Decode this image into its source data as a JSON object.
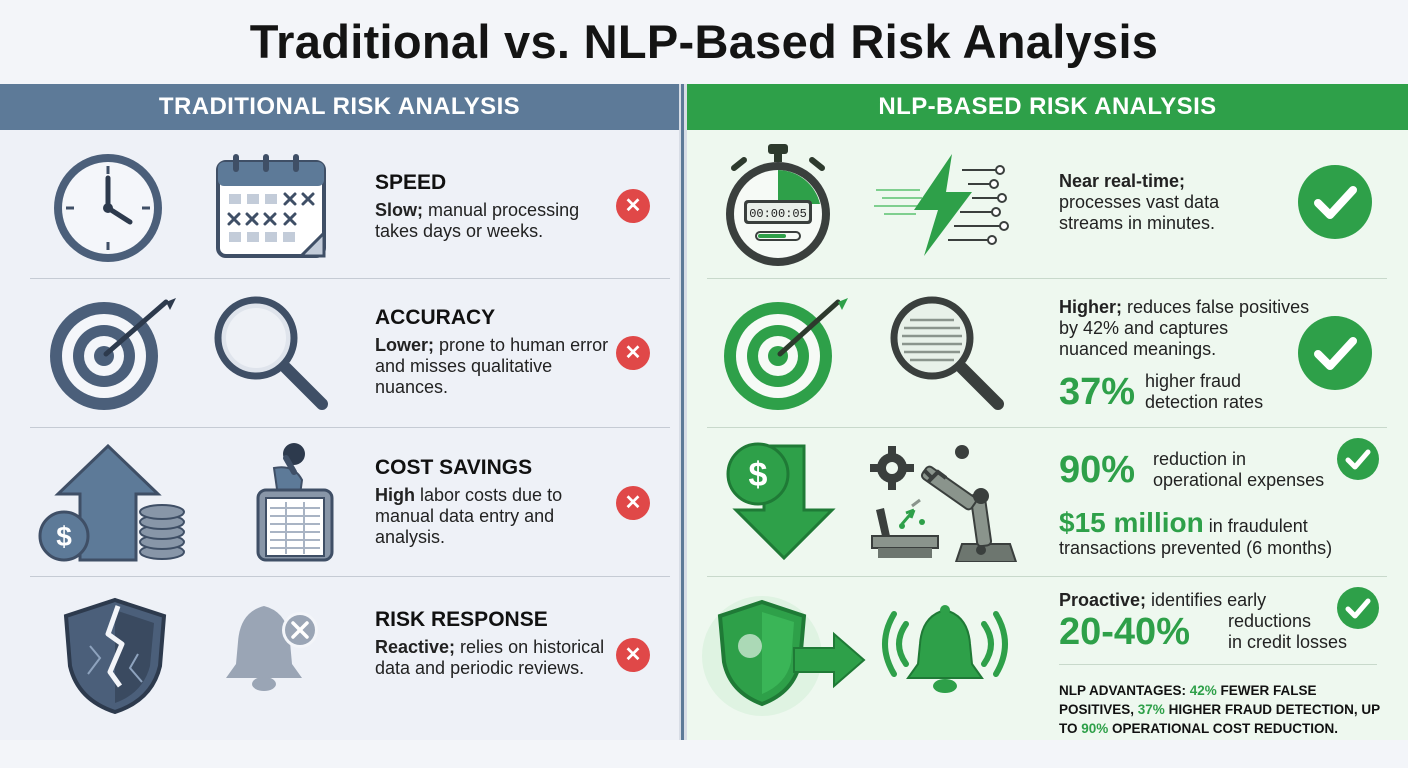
{
  "title": "Traditional vs. NLP-Based Risk Analysis",
  "left": {
    "header": "TRADITIONAL RISK ANALYSIS",
    "rows": [
      {
        "heading": "SPEED",
        "bold": "Slow;",
        "text": " manual processing takes days or weeks."
      },
      {
        "heading": "ACCURACY",
        "bold": "Lower;",
        "text": " prone to human error and misses qualitative nuances."
      },
      {
        "heading": "COST SAVINGS",
        "bold": "High",
        "text": " labor costs due to manual data entry and analysis."
      },
      {
        "heading": "RISK RESPONSE",
        "bold": "Reactive;",
        "text": " relies on historical data and periodic reviews."
      }
    ],
    "x_glyph": "✕"
  },
  "right": {
    "header": "NLP-BASED RISK ANALYSIS",
    "stopwatch_display": "00:00:05",
    "speed": {
      "bold": "Near real-time;",
      "text": "processes vast data streams in minutes."
    },
    "accuracy": {
      "bold": "Higher;",
      "text1": " reduces false positives",
      "text2": "by 42% and captures",
      "text3": "nuanced meanings.",
      "stat": "37%",
      "stat_text1": "higher fraud",
      "stat_text2": "detection rates"
    },
    "cost": {
      "stat1": "90%",
      "stat1_text1": "reduction in",
      "stat1_text2": "operational expenses",
      "stat2": "$15 million",
      "stat2_text1": " in fraudulent",
      "stat2_text2": "transactions prevented (6 months)"
    },
    "risk": {
      "bold": "Proactive;",
      "text": " identifies early",
      "stat": "20-40%",
      "stat_text1": "reductions",
      "stat_text2": "in credit losses"
    },
    "footer": {
      "p1": "NLP ADVANTAGES: ",
      "p2": "42%",
      "p3": " FEWER FALSE POSITIVES, ",
      "p4": "37%",
      "p5": " HIGHER FRAUD DETECTION, UP TO ",
      "p6": "90%",
      "p7": " OPERATIONAL COST REDUCTION."
    }
  },
  "colors": {
    "slate": "#5d7a98",
    "green": "#2ea049",
    "red": "#e04848",
    "icon_dark": "#3f4f66"
  }
}
